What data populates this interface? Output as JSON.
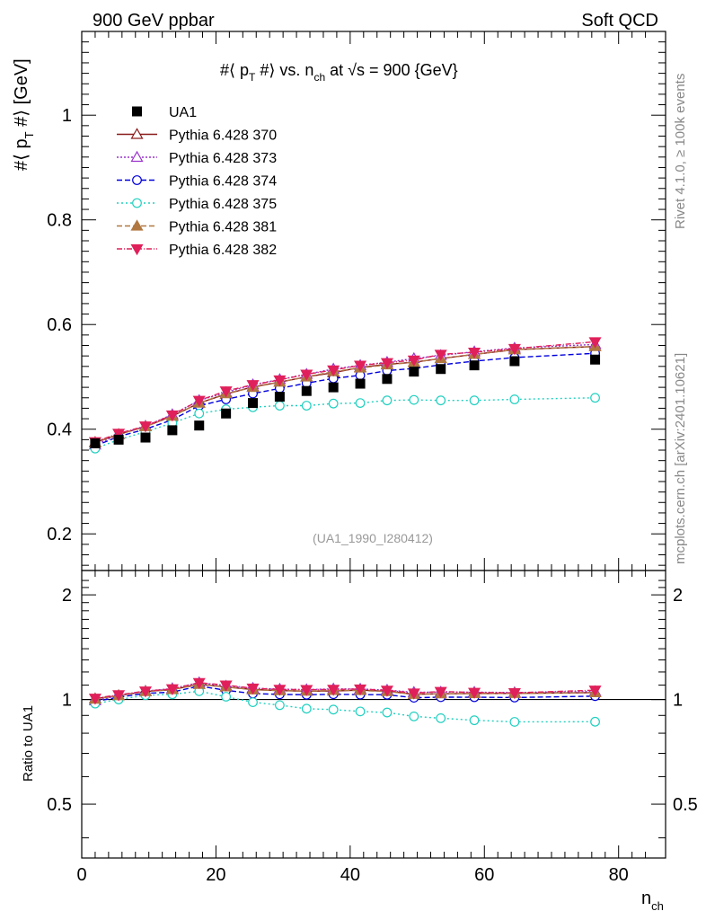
{
  "header": {
    "left": "900 GeV ppbar",
    "right": "Soft QCD"
  },
  "side_labels": {
    "top": "Rivet 4.1.0, ≥ 100k events",
    "bottom": "mcplots.cern.ch [arXiv:2401.10621]"
  },
  "chart_data": [
    {
      "type": "line",
      "title": "#⟨ p_T #⟩ vs. n_ch at √s = 900 {GeV}",
      "title_parts": {
        "a": "#⟨ p",
        "sub1": "T",
        "b": " #⟩ vs. n",
        "sub2": "ch",
        "c": " at √s = 900 {GeV}"
      },
      "ylabel": "#⟨ p_T #⟩ [GeV]",
      "ylabel_parts": {
        "a": "#⟨ p",
        "sub": "T",
        "b": " #⟩ [GeV]"
      },
      "xlim": [
        0,
        87
      ],
      "ylim": [
        0.13,
        1.16
      ],
      "yticks": [
        0.2,
        0.4,
        0.6,
        0.8,
        1.0
      ],
      "ytick_labels": [
        "0.2",
        "0.4",
        "0.6",
        "0.8",
        "1"
      ],
      "reference_label": "(UA1_1990_I280412)",
      "x": [
        2,
        5.5,
        9.5,
        13.5,
        17.5,
        21.5,
        25.5,
        29.5,
        33.5,
        37.5,
        41.5,
        45.5,
        49.5,
        53.5,
        58.5,
        64.5,
        76.5
      ],
      "data": {
        "name": "UA1",
        "values": [
          0.373,
          0.38,
          0.384,
          0.398,
          0.407,
          0.43,
          0.45,
          0.462,
          0.473,
          0.48,
          0.487,
          0.496,
          0.51,
          0.515,
          0.522,
          0.53,
          0.533
        ]
      },
      "series": [
        {
          "name": "Pythia 6.428 370",
          "color": "#8b1a1a",
          "marker": "triangle-up-open",
          "dash": "",
          "values": [
            0.375,
            0.39,
            0.405,
            0.425,
            0.45,
            0.467,
            0.481,
            0.49,
            0.5,
            0.508,
            0.518,
            0.524,
            0.528,
            0.535,
            0.543,
            0.552,
            0.558
          ]
        },
        {
          "name": "Pythia 6.428 373",
          "color": "#9932cc",
          "marker": "triangle-up-open",
          "dash": "2,2",
          "values": [
            0.37,
            0.39,
            0.406,
            0.428,
            0.455,
            0.47,
            0.485,
            0.495,
            0.505,
            0.515,
            0.522,
            0.528,
            0.535,
            0.541,
            0.548,
            0.555,
            0.562
          ]
        },
        {
          "name": "Pythia 6.428 374",
          "color": "#0000dd",
          "marker": "circle-open",
          "dash": "6,3",
          "values": [
            0.368,
            0.386,
            0.4,
            0.418,
            0.445,
            0.457,
            0.468,
            0.478,
            0.488,
            0.497,
            0.503,
            0.512,
            0.516,
            0.523,
            0.53,
            0.537,
            0.545
          ]
        },
        {
          "name": "Pythia 6.428 375",
          "color": "#20d0c0",
          "marker": "circle-open",
          "dash": "2,3",
          "values": [
            0.363,
            0.38,
            0.395,
            0.412,
            0.43,
            0.438,
            0.442,
            0.445,
            0.445,
            0.449,
            0.45,
            0.455,
            0.456,
            0.455,
            0.455,
            0.457,
            0.46
          ]
        },
        {
          "name": "Pythia 6.428 381",
          "color": "#b07840",
          "marker": "triangle-up-filled",
          "dash": "6,3",
          "values": [
            0.374,
            0.39,
            0.405,
            0.425,
            0.45,
            0.468,
            0.48,
            0.49,
            0.5,
            0.51,
            0.517,
            0.523,
            0.528,
            0.535,
            0.543,
            0.552,
            0.558
          ]
        },
        {
          "name": "Pythia 6.428 382",
          "color": "#e0205a",
          "marker": "triangle-down-filled",
          "dash": "6,2,1,2",
          "values": [
            0.376,
            0.392,
            0.406,
            0.427,
            0.455,
            0.473,
            0.485,
            0.494,
            0.505,
            0.513,
            0.522,
            0.527,
            0.532,
            0.543,
            0.547,
            0.554,
            0.567
          ]
        }
      ]
    },
    {
      "type": "line",
      "title": "",
      "ylabel": "Ratio to UA1",
      "xlabel": "n_ch",
      "xlabel_parts": {
        "a": "n",
        "sub": "ch"
      },
      "xlim": [
        0,
        87
      ],
      "ylim": [
        0.35,
        2.35
      ],
      "reference_value": 1,
      "yticks": [
        0.5,
        1,
        2
      ],
      "ytick_labels": [
        "0.5",
        "1",
        "2"
      ],
      "xticks": [
        0,
        20,
        40,
        60,
        80
      ],
      "xtick_labels": [
        "0",
        "20",
        "40",
        "60",
        "80"
      ],
      "note": "ratio values = series / UA1 data"
    }
  ]
}
